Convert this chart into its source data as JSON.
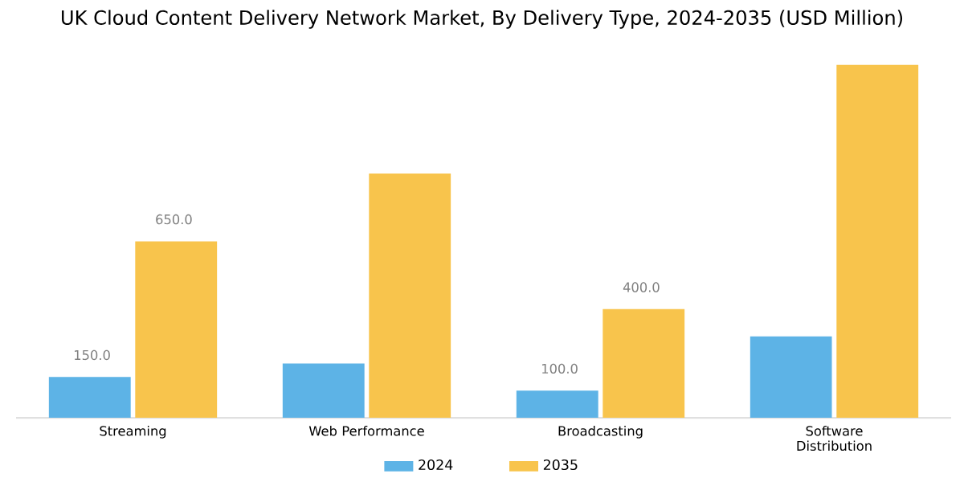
{
  "chart_data": {
    "type": "bar",
    "title": "UK Cloud Content Delivery Network Market, By Delivery Type, 2024-2035 (USD Million)",
    "categories": [
      "Streaming",
      "Web Performance",
      "Broadcasting",
      "Software Distribution"
    ],
    "series": [
      {
        "name": "2024",
        "color": "#5db3e6",
        "values": [
          150,
          200,
          100,
          300
        ],
        "value_labels": [
          "150.0",
          null,
          "100.0",
          null
        ]
      },
      {
        "name": "2035",
        "color": "#f8c44c",
        "values": [
          650,
          900,
          400,
          1300
        ],
        "value_labels": [
          "650.0",
          null,
          "400.0",
          null
        ]
      }
    ],
    "legend": "bottom"
  }
}
